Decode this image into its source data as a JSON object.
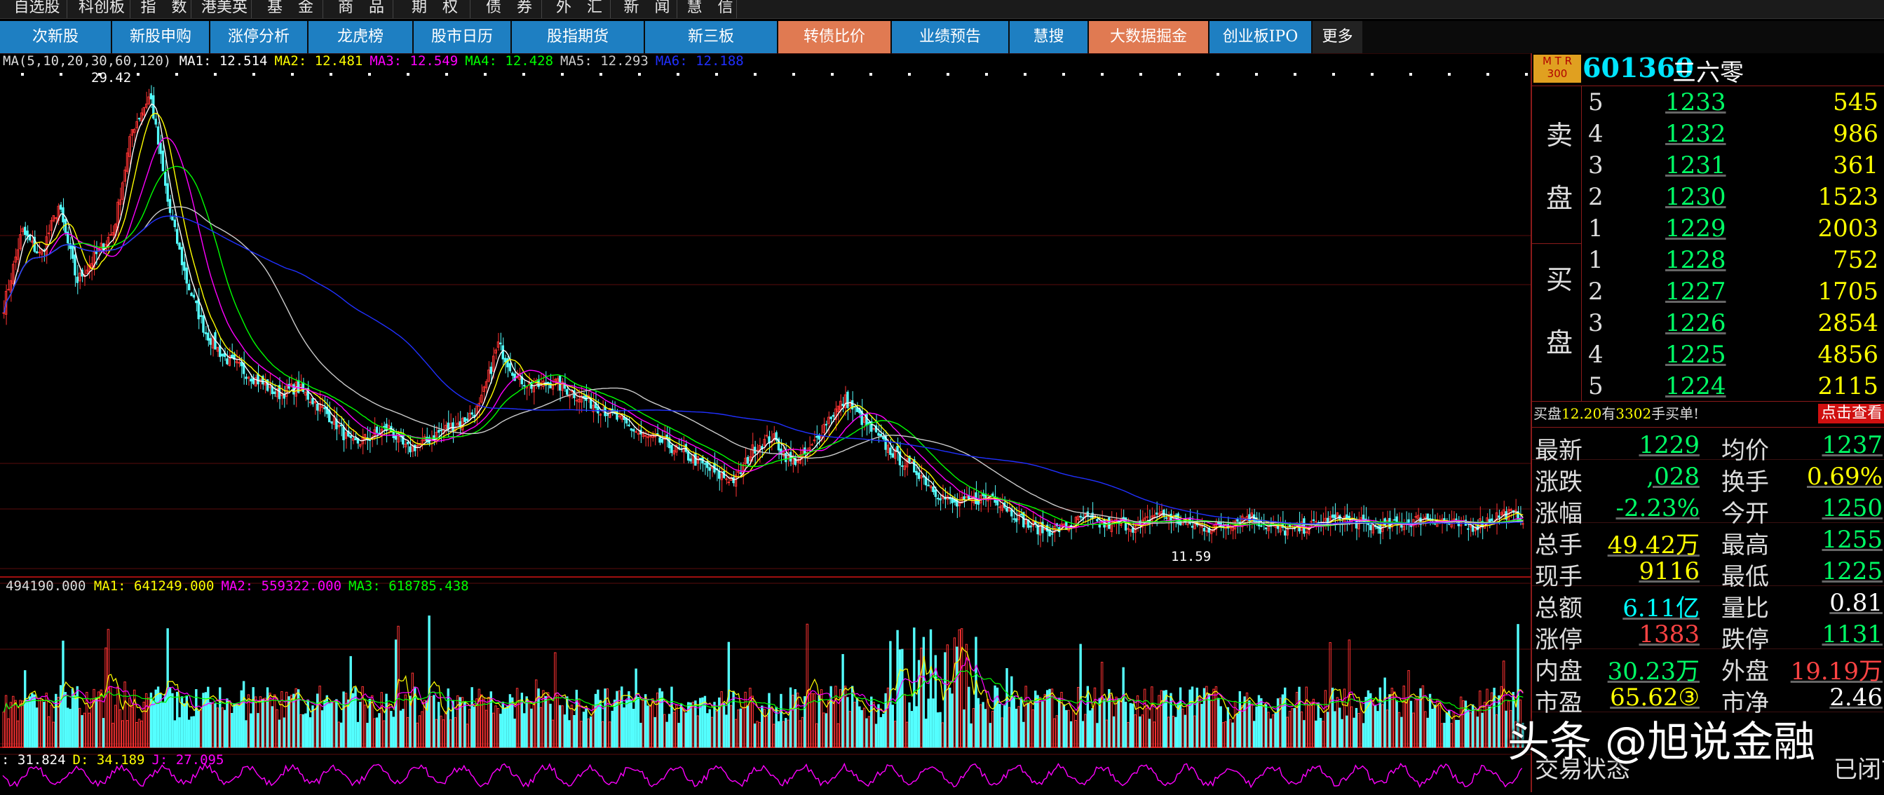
{
  "top_menu": [
    "自选股",
    "科创板",
    "指　数",
    "港美英",
    "基　金",
    "商　品",
    "期　权",
    "债　券",
    "外　汇",
    "新　闻",
    "慧　信"
  ],
  "nav_tabs": [
    {
      "label": "次新股",
      "hl": false
    },
    {
      "label": "新股申购",
      "hl": false
    },
    {
      "label": "涨停分析",
      "hl": false
    },
    {
      "label": "龙虎榜",
      "hl": false
    },
    {
      "label": "股市日历",
      "hl": false
    },
    {
      "label": "股指期货",
      "hl": false
    },
    {
      "label": "新三板",
      "hl": false
    },
    {
      "label": "转债比价",
      "hl": true
    },
    {
      "label": "业绩预告",
      "hl": false
    },
    {
      "label": "慧搜",
      "hl": false
    },
    {
      "label": "大数据掘金",
      "hl": true
    },
    {
      "label": "创业板IPO",
      "hl": false
    },
    {
      "label": "更多",
      "hl": false,
      "more": true
    }
  ],
  "ma_legend": {
    "prefix": "MA(5,10,20,30,60,120)",
    "items": [
      {
        "text": "MA1: 12.514",
        "color": "#ffffff"
      },
      {
        "text": "MA2: 12.481",
        "color": "#ffff00"
      },
      {
        "text": "MA3: 12.549",
        "color": "#ff00ff"
      },
      {
        "text": "MA4: 12.428",
        "color": "#00ff00"
      },
      {
        "text": "MA5: 12.293",
        "color": "#cccccc"
      },
      {
        "text": "MA6: 12.188",
        "color": "#2030ff"
      }
    ]
  },
  "price_high_label": "29.42",
  "price_low_label": "11.59",
  "vol_legend": {
    "value": "494190.000",
    "items": [
      {
        "text": "MA1: 641249.000",
        "color": "#ffff00"
      },
      {
        "text": "MA2: 559322.000",
        "color": "#ff00ff"
      },
      {
        "text": "MA3: 618785.438",
        "color": "#00ff00"
      }
    ]
  },
  "kdj_legend": {
    "items": [
      {
        "text": ": 31.824",
        "color": "#ffffff"
      },
      {
        "text": "D: 34.189",
        "color": "#ffff00"
      },
      {
        "text": "J: 27.095",
        "color": "#ff00ff"
      }
    ]
  },
  "stock": {
    "badge_top": "M T R",
    "badge_bottom": "300",
    "code": "601360",
    "name": "三六零"
  },
  "order_book": {
    "sell_label_1": "卖",
    "sell_label_2": "盘",
    "buy_label_1": "买",
    "buy_label_2": "盘",
    "sell": [
      {
        "level": "5",
        "price": "1233",
        "vol": "545"
      },
      {
        "level": "4",
        "price": "1232",
        "vol": "986"
      },
      {
        "level": "3",
        "price": "1231",
        "vol": "361"
      },
      {
        "level": "2",
        "price": "1230",
        "vol": "1523"
      },
      {
        "level": "1",
        "price": "1229",
        "vol": "2003"
      }
    ],
    "buy": [
      {
        "level": "1",
        "price": "1228",
        "vol": "752"
      },
      {
        "level": "2",
        "price": "1227",
        "vol": "1705"
      },
      {
        "level": "3",
        "price": "1226",
        "vol": "2854"
      },
      {
        "level": "4",
        "price": "1225",
        "vol": "4856"
      },
      {
        "level": "5",
        "price": "1224",
        "vol": "2115"
      }
    ]
  },
  "alert": {
    "pre": "买盘",
    "price": "12.20",
    "mid": "有",
    "vol": "3302",
    "post": "手买单!",
    "link": "点击查看"
  },
  "stats": [
    {
      "l1": "最新",
      "v1": "1229",
      "c1": "#00ff66",
      "l2": "均价",
      "v2": "1237",
      "c2": "#00ff66"
    },
    {
      "l1": "涨跌",
      "v1": ",028",
      "c1": "#00ff66",
      "l2": "换手",
      "v2": "0.69%",
      "c2": "#ffff00"
    },
    {
      "l1": "涨幅",
      "v1": "-2.23%",
      "c1": "#00ff66",
      "l2": "今开",
      "v2": "1250",
      "c2": "#00ff66"
    },
    {
      "l1": "总手",
      "v1": "49.42万",
      "c1": "#ffff00",
      "l2": "最高",
      "v2": "1255",
      "c2": "#00ff66"
    },
    {
      "l1": "现手",
      "v1": "9116",
      "c1": "#ffff00",
      "l2": "最低",
      "v2": "1225",
      "c2": "#00ff66"
    },
    {
      "l1": "总额",
      "v1": "6.11亿",
      "c1": "#00ffff",
      "l2": "量比",
      "v2": "0.81",
      "c2": "#ffffff"
    },
    {
      "l1": "涨停",
      "v1": "1383",
      "c1": "#ff4444",
      "l2": "跌停",
      "v2": "1131",
      "c2": "#00ff66"
    },
    {
      "l1": "内盘",
      "v1": "30.23万",
      "c1": "#00ff66",
      "l2": "外盘",
      "v2": "19.19万",
      "c2": "#ff4444"
    },
    {
      "l1": "市盈",
      "v1": "65.62③",
      "c1": "#ffff00",
      "l2": "市净",
      "v2": "2.46",
      "c2": "#ffffff"
    }
  ],
  "status_row": {
    "label": "交易状态",
    "value": "已闭市"
  },
  "watermark": "头条 @旭说金融",
  "chart_data": {
    "type": "candlestick",
    "price_path": [
      21,
      24,
      23,
      25,
      22,
      23,
      24,
      28,
      29.42,
      25,
      22,
      20,
      19,
      18.5,
      18,
      17.5,
      17.8,
      17.2,
      16.5,
      15.5,
      15.8,
      16.2,
      15.3,
      15.6,
      16.1,
      16.4,
      17,
      19.5,
      18.2,
      17.8,
      18,
      17.6,
      17.2,
      16.8,
      16.3,
      15.8,
      15.6,
      15.2,
      14.8,
      14.3,
      14.1,
      15.4,
      15.8,
      14.8,
      15.2,
      16.5,
      17.3,
      16.4,
      15.6,
      14.9,
      14.4,
      13.6,
      13.1,
      13.3,
      13.5,
      12.9,
      12.3,
      12.1,
      12.2,
      12.6,
      12.3,
      12.4,
      12.2,
      12.8,
      12.5,
      12.3,
      12.2,
      12.4,
      12.7,
      12.3,
      12.1,
      12.2,
      12.4,
      12.6,
      12.4,
      12.2,
      12.3,
      12.5,
      12.6,
      12.4,
      12.2,
      12.5,
      12.8,
      12.6
    ]
  }
}
